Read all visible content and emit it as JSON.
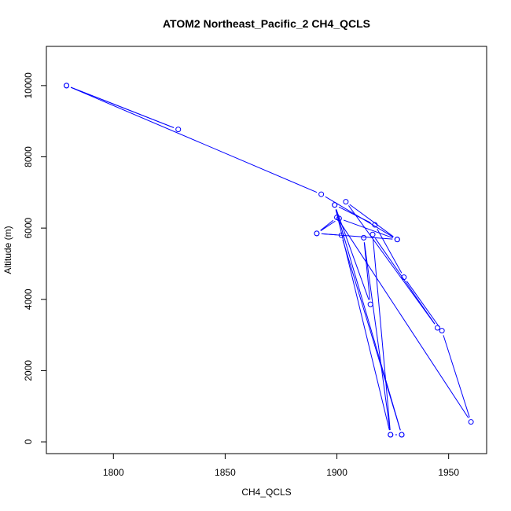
{
  "chart_data": {
    "type": "line",
    "title": "ATOM2 Northeast_Pacific_2 CH4_QCLS",
    "xlabel": "CH4_QCLS",
    "ylabel": "Altitude (m)",
    "xlim": [
      1770,
      1967
    ],
    "ylim": [
      -330,
      11100
    ],
    "xticks": [
      1800,
      1850,
      1900,
      1950
    ],
    "yticks": [
      0,
      2000,
      4000,
      6000,
      8000,
      10000
    ],
    "grid": false,
    "series_color": "#0000ff",
    "series": [
      {
        "marker": "open-circle",
        "line": "solid",
        "points": [
          {
            "x": 1779,
            "y": 10000
          },
          {
            "x": 1829,
            "y": 8770
          },
          {
            "x": 1779,
            "y": 10000
          },
          {
            "x": 1893,
            "y": 6950
          },
          {
            "x": 1927,
            "y": 5680
          },
          {
            "x": 1891,
            "y": 5850
          },
          {
            "x": 1901,
            "y": 6270
          },
          {
            "x": 1927,
            "y": 5680
          },
          {
            "x": 1904,
            "y": 6740
          },
          {
            "x": 1945,
            "y": 3200
          },
          {
            "x": 1916,
            "y": 5820
          },
          {
            "x": 1924,
            "y": 200
          },
          {
            "x": 1899,
            "y": 6650
          },
          {
            "x": 1929,
            "y": 200
          },
          {
            "x": 1902,
            "y": 5800
          },
          {
            "x": 1891,
            "y": 5850
          },
          {
            "x": 1900,
            "y": 6300
          },
          {
            "x": 1960,
            "y": 560
          },
          {
            "x": 1947,
            "y": 3120
          },
          {
            "x": 1930,
            "y": 4620
          },
          {
            "x": 1917,
            "y": 6090
          },
          {
            "x": 1899,
            "y": 6650
          },
          {
            "x": 1915,
            "y": 3860
          },
          {
            "x": 1912,
            "y": 5730
          },
          {
            "x": 1924,
            "y": 200
          },
          {
            "x": 1929,
            "y": 200
          }
        ]
      }
    ]
  }
}
